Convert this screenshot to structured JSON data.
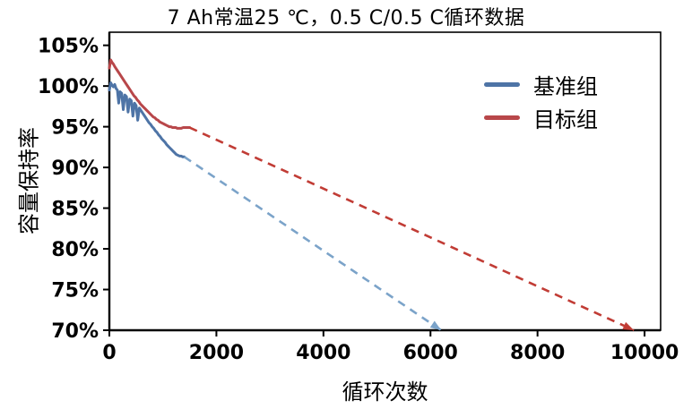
{
  "chart_data": {
    "type": "line",
    "title": "7 Ah常温25 ℃，0.5 C/0.5 C循环数据",
    "xlabel": "循环次数",
    "ylabel": "容量保持率",
    "xlim": [
      0,
      10000
    ],
    "ylim": [
      70,
      105
    ],
    "x_ticks": [
      0,
      2000,
      4000,
      6000,
      8000,
      10000
    ],
    "y_ticks": [
      70,
      75,
      80,
      85,
      90,
      95,
      100,
      105
    ],
    "y_tick_suffix": "%",
    "grid": false,
    "legend_position": "upper-right",
    "series": [
      {
        "name": "基准组",
        "color": "#4e74a6",
        "dash_color": "#7ba3c9",
        "solid_points": [
          [
            0,
            99.5
          ],
          [
            25,
            100.4
          ],
          [
            50,
            100.1
          ],
          [
            75,
            99.9
          ],
          [
            100,
            100.2
          ],
          [
            125,
            99.7
          ],
          [
            150,
            99.5
          ],
          [
            175,
            97.9
          ],
          [
            200,
            99.3
          ],
          [
            230,
            99.1
          ],
          [
            260,
            97.1
          ],
          [
            290,
            98.9
          ],
          [
            320,
            98.7
          ],
          [
            350,
            96.8
          ],
          [
            380,
            98.4
          ],
          [
            410,
            98.2
          ],
          [
            440,
            96.3
          ],
          [
            470,
            97.9
          ],
          [
            500,
            97.6
          ],
          [
            530,
            95.8
          ],
          [
            560,
            97.3
          ],
          [
            590,
            97.0
          ],
          [
            620,
            96.7
          ],
          [
            650,
            96.4
          ],
          [
            680,
            96.1
          ],
          [
            710,
            95.8
          ],
          [
            740,
            95.5
          ],
          [
            770,
            95.3
          ],
          [
            800,
            95.0
          ],
          [
            830,
            94.8
          ],
          [
            860,
            94.5
          ],
          [
            890,
            94.3
          ],
          [
            920,
            94.0
          ],
          [
            950,
            93.8
          ],
          [
            980,
            93.5
          ],
          [
            1010,
            93.3
          ],
          [
            1040,
            93.1
          ],
          [
            1070,
            92.8
          ],
          [
            1100,
            92.6
          ],
          [
            1130,
            92.4
          ],
          [
            1160,
            92.2
          ],
          [
            1190,
            92.0
          ],
          [
            1220,
            91.8
          ],
          [
            1250,
            91.6
          ],
          [
            1280,
            91.5
          ],
          [
            1310,
            91.4
          ],
          [
            1340,
            91.4
          ],
          [
            1370,
            91.3
          ],
          [
            1400,
            91.3
          ]
        ],
        "dashed_projection": [
          [
            1400,
            91.3
          ],
          [
            6200,
            70
          ]
        ],
        "arrow_at_end": true
      },
      {
        "name": "目标组",
        "color": "#b8474a",
        "dash_color": "#c13c35",
        "solid_points": [
          [
            0,
            102.2
          ],
          [
            25,
            103.2
          ],
          [
            50,
            102.9
          ],
          [
            75,
            102.7
          ],
          [
            100,
            102.4
          ],
          [
            130,
            102.1
          ],
          [
            160,
            101.8
          ],
          [
            190,
            101.5
          ],
          [
            220,
            101.2
          ],
          [
            250,
            100.9
          ],
          [
            280,
            100.6
          ],
          [
            310,
            100.3
          ],
          [
            340,
            100.0
          ],
          [
            370,
            99.7
          ],
          [
            400,
            99.4
          ],
          [
            430,
            99.1
          ],
          [
            460,
            98.8
          ],
          [
            490,
            98.6
          ],
          [
            520,
            98.3
          ],
          [
            550,
            98.1
          ],
          [
            580,
            97.8
          ],
          [
            610,
            97.6
          ],
          [
            640,
            97.4
          ],
          [
            670,
            97.2
          ],
          [
            700,
            97.0
          ],
          [
            730,
            96.8
          ],
          [
            760,
            96.6
          ],
          [
            790,
            96.4
          ],
          [
            820,
            96.2
          ],
          [
            850,
            96.1
          ],
          [
            880,
            95.9
          ],
          [
            910,
            95.8
          ],
          [
            940,
            95.6
          ],
          [
            970,
            95.5
          ],
          [
            1000,
            95.4
          ],
          [
            1030,
            95.3
          ],
          [
            1060,
            95.2
          ],
          [
            1090,
            95.1
          ],
          [
            1120,
            95.0
          ],
          [
            1150,
            95.0
          ],
          [
            1180,
            94.9
          ],
          [
            1210,
            94.9
          ],
          [
            1240,
            94.9
          ],
          [
            1270,
            94.8
          ],
          [
            1300,
            94.8
          ],
          [
            1340,
            94.8
          ],
          [
            1380,
            94.9
          ],
          [
            1420,
            94.9
          ],
          [
            1460,
            94.9
          ],
          [
            1500,
            94.9
          ]
        ],
        "dashed_projection": [
          [
            1500,
            94.9
          ],
          [
            9800,
            70
          ]
        ],
        "arrow_at_end": true
      }
    ]
  },
  "colors": {
    "axis": "#000000",
    "background": "#ffffff",
    "text": "#000000"
  }
}
